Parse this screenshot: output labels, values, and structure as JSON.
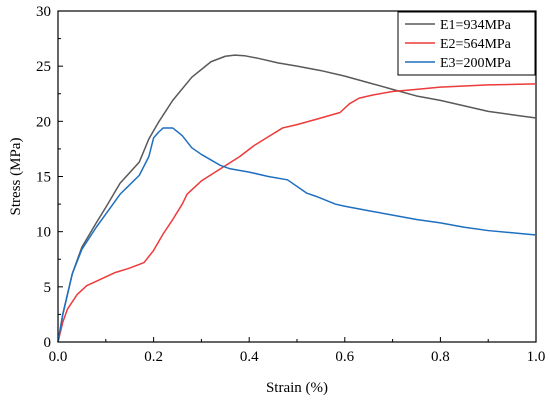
{
  "chart_data": {
    "type": "line",
    "xlabel": "Strain (%)",
    "ylabel": "Stress (MPa)",
    "xlim": [
      0,
      1.0
    ],
    "ylim": [
      0,
      30
    ],
    "xticks": [
      0,
      0.2,
      0.4,
      0.6,
      0.8,
      1.0
    ],
    "xtick_labels": [
      "0.0",
      "0.2",
      "0.4",
      "0.6",
      "0.8",
      "1.0"
    ],
    "yticks": [
      0,
      5,
      10,
      15,
      20,
      25,
      30
    ],
    "ytick_labels": [
      "0",
      "5",
      "10",
      "15",
      "20",
      "25",
      "30"
    ],
    "grid": false,
    "legend_position": "top-right",
    "series": [
      {
        "name": "E1=934MPa",
        "color": "#595959",
        "points": [
          [
            0,
            0
          ],
          [
            0.01,
            2.5
          ],
          [
            0.03,
            6.2
          ],
          [
            0.05,
            8.6
          ],
          [
            0.08,
            10.8
          ],
          [
            0.1,
            12.2
          ],
          [
            0.13,
            14.4
          ],
          [
            0.17,
            16.3
          ],
          [
            0.19,
            18.4
          ],
          [
            0.21,
            19.9
          ],
          [
            0.24,
            21.9
          ],
          [
            0.28,
            24.0
          ],
          [
            0.32,
            25.4
          ],
          [
            0.35,
            25.9
          ],
          [
            0.37,
            26.0
          ],
          [
            0.39,
            25.95
          ],
          [
            0.42,
            25.7
          ],
          [
            0.46,
            25.3
          ],
          [
            0.5,
            25.0
          ],
          [
            0.55,
            24.6
          ],
          [
            0.6,
            24.1
          ],
          [
            0.65,
            23.5
          ],
          [
            0.7,
            22.9
          ],
          [
            0.75,
            22.3
          ],
          [
            0.8,
            21.9
          ],
          [
            0.85,
            21.4
          ],
          [
            0.9,
            20.9
          ],
          [
            0.95,
            20.6
          ],
          [
            1.0,
            20.3
          ]
        ]
      },
      {
        "name": "E2=564MPa",
        "color": "#ed3a3a",
        "points": [
          [
            0,
            0
          ],
          [
            0.01,
            1.8
          ],
          [
            0.02,
            3.0
          ],
          [
            0.04,
            4.3
          ],
          [
            0.06,
            5.1
          ],
          [
            0.09,
            5.7
          ],
          [
            0.12,
            6.3
          ],
          [
            0.15,
            6.7
          ],
          [
            0.18,
            7.2
          ],
          [
            0.2,
            8.3
          ],
          [
            0.22,
            9.8
          ],
          [
            0.24,
            11.1
          ],
          [
            0.26,
            12.5
          ],
          [
            0.27,
            13.4
          ],
          [
            0.3,
            14.6
          ],
          [
            0.34,
            15.7
          ],
          [
            0.38,
            16.8
          ],
          [
            0.41,
            17.8
          ],
          [
            0.44,
            18.6
          ],
          [
            0.47,
            19.4
          ],
          [
            0.5,
            19.7
          ],
          [
            0.55,
            20.3
          ],
          [
            0.59,
            20.8
          ],
          [
            0.61,
            21.6
          ],
          [
            0.63,
            22.1
          ],
          [
            0.66,
            22.4
          ],
          [
            0.7,
            22.7
          ],
          [
            0.75,
            22.9
          ],
          [
            0.8,
            23.1
          ],
          [
            0.85,
            23.2
          ],
          [
            0.9,
            23.3
          ],
          [
            1.0,
            23.4
          ]
        ]
      },
      {
        "name": "E3=200MPa",
        "color": "#1f6fbf",
        "points": [
          [
            0,
            0
          ],
          [
            0.01,
            2.5
          ],
          [
            0.03,
            6.2
          ],
          [
            0.05,
            8.4
          ],
          [
            0.08,
            10.4
          ],
          [
            0.1,
            11.6
          ],
          [
            0.13,
            13.4
          ],
          [
            0.17,
            15.1
          ],
          [
            0.19,
            16.8
          ],
          [
            0.2,
            18.5
          ],
          [
            0.21,
            19.0
          ],
          [
            0.22,
            19.4
          ],
          [
            0.24,
            19.4
          ],
          [
            0.26,
            18.7
          ],
          [
            0.28,
            17.6
          ],
          [
            0.3,
            17.0
          ],
          [
            0.32,
            16.5
          ],
          [
            0.34,
            16.0
          ],
          [
            0.36,
            15.7
          ],
          [
            0.4,
            15.4
          ],
          [
            0.44,
            15.0
          ],
          [
            0.48,
            14.7
          ],
          [
            0.52,
            13.5
          ],
          [
            0.54,
            13.2
          ],
          [
            0.58,
            12.5
          ],
          [
            0.6,
            12.3
          ],
          [
            0.65,
            11.9
          ],
          [
            0.7,
            11.5
          ],
          [
            0.75,
            11.1
          ],
          [
            0.8,
            10.8
          ],
          [
            0.85,
            10.4
          ],
          [
            0.9,
            10.1
          ],
          [
            0.95,
            9.9
          ],
          [
            1.0,
            9.7
          ]
        ]
      }
    ]
  }
}
